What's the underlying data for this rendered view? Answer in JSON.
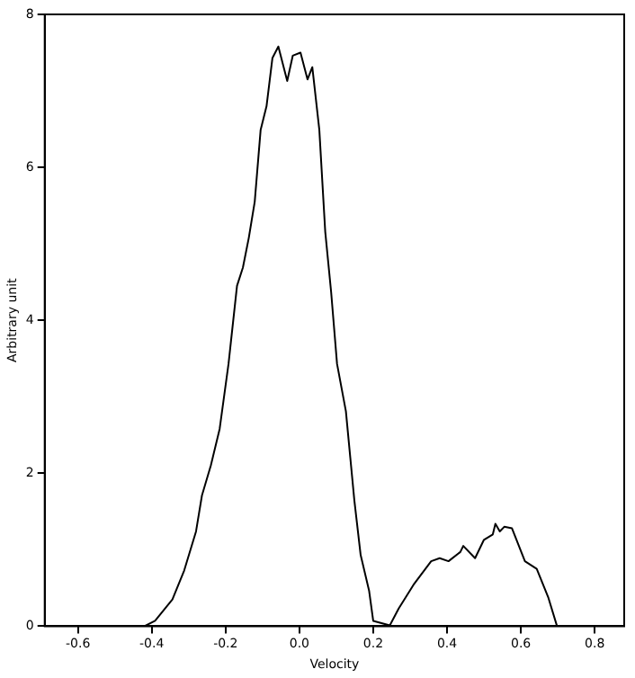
{
  "chart_data": {
    "type": "line",
    "xlabel": "Velocity",
    "ylabel": "Arbitrary unit",
    "xlim": [
      -0.69,
      0.88
    ],
    "ylim": [
      0,
      8
    ],
    "xticks": [
      -0.6,
      -0.4,
      -0.2,
      {
        "value": 0,
        "label": "0.0"
      },
      0.2,
      0.4,
      0.6,
      0.8
    ],
    "yticks": [
      0,
      2,
      4,
      6,
      8
    ],
    "grid": false,
    "legend": false,
    "marker": "none",
    "line_style": "solid",
    "series": [
      {
        "color": "#000000",
        "x": [
          -0.69,
          -0.42,
          -0.391,
          -0.344,
          -0.312,
          -0.28,
          -0.264,
          -0.24,
          -0.216,
          -0.192,
          -0.169,
          -0.153,
          -0.137,
          -0.121,
          -0.105,
          -0.089,
          -0.073,
          -0.057,
          -0.033,
          -0.018,
          0.003,
          0.022,
          0.035,
          0.054,
          0.07,
          0.086,
          0.102,
          0.126,
          0.149,
          0.166,
          0.189,
          0.2,
          0.245,
          0.269,
          0.309,
          0.357,
          0.38,
          0.404,
          0.436,
          0.444,
          0.476,
          0.5,
          0.524,
          0.531,
          0.543,
          0.555,
          0.576,
          0.611,
          0.643,
          0.674,
          0.698,
          0.88
        ],
        "values": [
          0,
          0,
          0.07,
          0.35,
          0.73,
          1.24,
          1.71,
          2.1,
          2.58,
          3.43,
          4.45,
          4.69,
          5.08,
          5.55,
          6.49,
          6.8,
          7.43,
          7.58,
          7.13,
          7.46,
          7.5,
          7.15,
          7.31,
          6.49,
          5.16,
          4.37,
          3.43,
          2.81,
          1.64,
          0.93,
          0.46,
          0.07,
          0.01,
          0.23,
          0.54,
          0.85,
          0.89,
          0.85,
          0.97,
          1.05,
          0.89,
          1.13,
          1.2,
          1.34,
          1.24,
          1.3,
          1.28,
          0.85,
          0.75,
          0.38,
          0,
          0
        ]
      }
    ]
  }
}
